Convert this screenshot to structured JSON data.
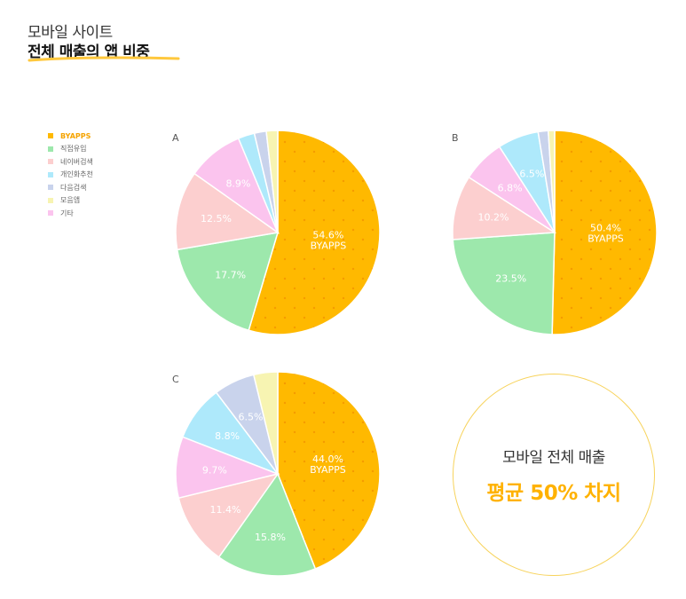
{
  "header": {
    "subtitle": "모바일 사이트",
    "title": "전체 매출의 앱 비중"
  },
  "legend": [
    {
      "label": "BYAPPS",
      "color": "#ffb900"
    },
    {
      "label": "직접유입",
      "color": "#9de8ac"
    },
    {
      "label": "네이버검색",
      "color": "#fccfcf"
    },
    {
      "label": "개인화추천",
      "color": "#aee9fb"
    },
    {
      "label": "다음검색",
      "color": "#c9d3ec"
    },
    {
      "label": "모음앱",
      "color": "#f7f4b2"
    },
    {
      "label": "기타",
      "color": "#fbc4ee"
    }
  ],
  "chart_data": [
    {
      "type": "pie",
      "label": "A",
      "order": [
        "BYAPPS",
        "직접유입",
        "네이버검색",
        "기타",
        "개인화추천",
        "다음검색",
        "모음앱"
      ],
      "values": [
        54.6,
        17.7,
        12.5,
        8.9,
        2.6,
        1.9,
        1.8
      ],
      "data_labels": [
        "54.6%\nBYAPPS",
        "17.7%",
        "12.5%",
        "8.9%",
        "",
        "",
        ""
      ]
    },
    {
      "type": "pie",
      "label": "B",
      "order": [
        "BYAPPS",
        "직접유입",
        "네이버검색",
        "기타",
        "개인화추천",
        "다음검색",
        "모음앱"
      ],
      "values": [
        50.4,
        23.5,
        10.2,
        6.8,
        6.5,
        1.6,
        1.0
      ],
      "data_labels": [
        "50.4%\nBYAPPS",
        "23.5%",
        "10.2%",
        "6.8%",
        "6.5%",
        "",
        ""
      ]
    },
    {
      "type": "pie",
      "label": "C",
      "order": [
        "BYAPPS",
        "직접유입",
        "네이버검색",
        "기타",
        "개인화추천",
        "다음검색",
        "모음앱"
      ],
      "values": [
        44.0,
        15.8,
        11.4,
        9.7,
        8.8,
        6.5,
        3.8
      ],
      "data_labels": [
        "44.0%\nBYAPPS",
        "15.8%",
        "11.4%",
        "9.7%",
        "8.8%",
        "6.5%",
        ""
      ]
    }
  ],
  "summary": {
    "line1": "모바일 전체 매출",
    "line2": "평균 50% 차지"
  }
}
